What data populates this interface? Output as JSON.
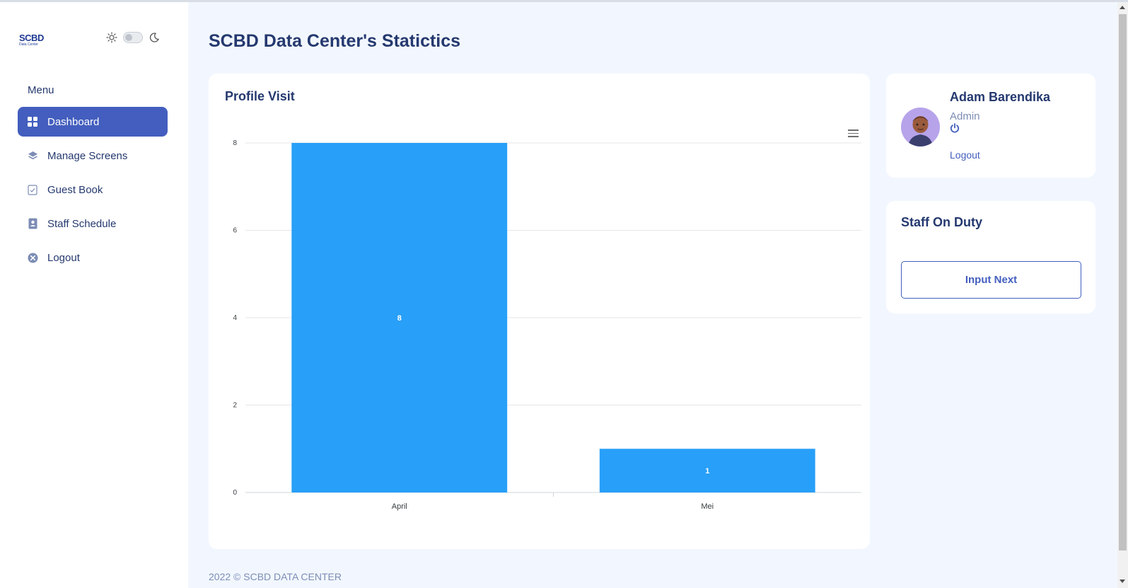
{
  "brand": {
    "logo_line1": "SCBD",
    "logo_line2": "Data Center"
  },
  "sidebar": {
    "menu_title": "Menu",
    "items": [
      {
        "label": "Dashboard",
        "icon": "grid-icon",
        "active": true
      },
      {
        "label": "Manage Screens",
        "icon": "layers-icon",
        "active": false
      },
      {
        "label": "Guest Book",
        "icon": "checklist-icon",
        "active": false
      },
      {
        "label": "Staff Schedule",
        "icon": "contact-book-icon",
        "active": false
      },
      {
        "label": "Logout",
        "icon": "x-circle-icon",
        "active": false
      }
    ]
  },
  "page": {
    "title": "SCBD Data Center's Statictics"
  },
  "profile_visit": {
    "title": "Profile Visit",
    "chart_data": {
      "type": "bar",
      "categories": [
        "April",
        "Mei"
      ],
      "values": [
        8,
        1
      ],
      "yticks": [
        0,
        2,
        4,
        6,
        8
      ],
      "ylim": [
        0,
        8
      ],
      "grid": true,
      "data_labels": true,
      "color": "#289ff8"
    }
  },
  "profile": {
    "name": "Adam Barendika",
    "role": "Admin",
    "logout_label": "Logout"
  },
  "staff": {
    "title": "Staff On Duty",
    "button_label": "Input Next"
  },
  "footer": {
    "text": "2022 © SCBD DATA CENTER"
  },
  "colors": {
    "primary": "#435ebe",
    "heading": "#25396f",
    "background": "#f2f7ff",
    "bar": "#289ff8"
  }
}
